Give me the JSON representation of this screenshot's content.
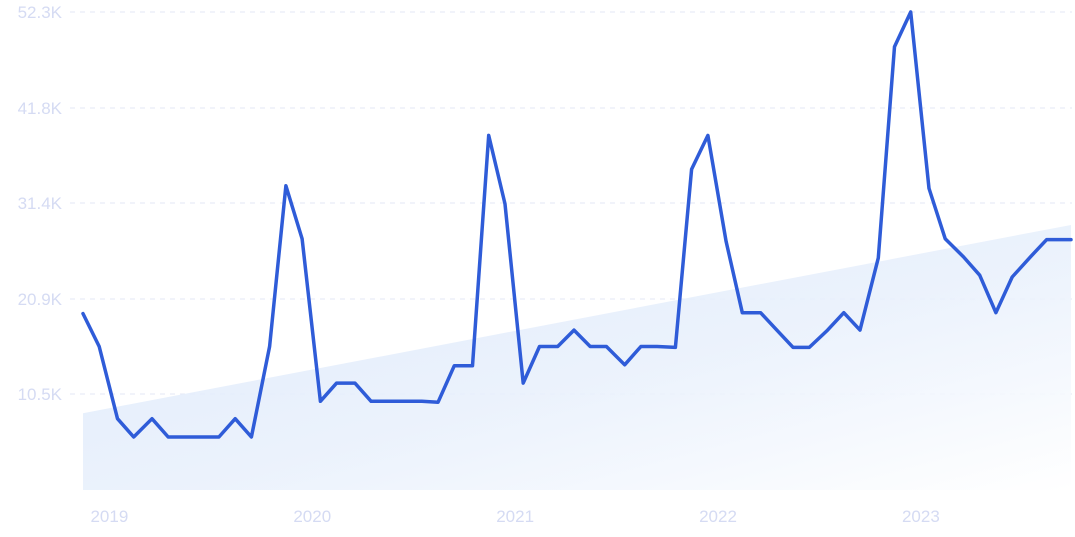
{
  "chart_data": {
    "type": "line",
    "title": "",
    "xlabel": "",
    "ylabel": "",
    "ylim": [
      0,
      52300
    ],
    "y_ticks": [
      {
        "value": 10500,
        "label": "10.5K"
      },
      {
        "value": 20900,
        "label": "20.9K"
      },
      {
        "value": 31400,
        "label": "31.4K"
      },
      {
        "value": 41800,
        "label": "41.8K"
      },
      {
        "value": 52300,
        "label": "52.3K"
      }
    ],
    "x_ticks": [
      {
        "value": 2019.0,
        "label": "2019"
      },
      {
        "value": 2020.0,
        "label": "2020"
      },
      {
        "value": 2021.0,
        "label": "2021"
      },
      {
        "value": 2022.0,
        "label": "2022"
      },
      {
        "value": 2023.0,
        "label": "2023"
      }
    ],
    "xlim": [
      2018.87,
      2023.74
    ],
    "grid": true,
    "series": [
      {
        "x": [
          2018.87,
          2018.95,
          2019.04,
          2019.12,
          2019.21,
          2019.29,
          2019.37,
          2019.45,
          2019.54,
          2019.62,
          2019.7,
          2019.79,
          2019.87,
          2019.95,
          2020.04,
          2020.12,
          2020.21,
          2020.29,
          2020.37,
          2020.45,
          2020.54,
          2020.62,
          2020.7,
          2020.79,
          2020.87,
          2020.95,
          2021.04,
          2021.12,
          2021.21,
          2021.29,
          2021.37,
          2021.45,
          2021.54,
          2021.62,
          2021.7,
          2021.79,
          2021.87,
          2021.95,
          2022.04,
          2022.12,
          2022.21,
          2022.29,
          2022.37,
          2022.45,
          2022.54,
          2022.62,
          2022.7,
          2022.79,
          2022.87,
          2022.95,
          2023.04,
          2023.12,
          2023.21,
          2023.29,
          2023.37,
          2023.45,
          2023.54,
          2023.62,
          2023.74
        ],
        "values": [
          19300,
          15700,
          7800,
          5800,
          7800,
          5800,
          5800,
          5800,
          5800,
          7800,
          5800,
          15700,
          33300,
          27500,
          9700,
          11700,
          11700,
          9700,
          9700,
          9700,
          9700,
          9600,
          13600,
          13600,
          38800,
          31300,
          11700,
          15700,
          15700,
          17500,
          15700,
          15700,
          13700,
          15700,
          15700,
          15600,
          35100,
          38800,
          27200,
          19400,
          19400,
          17500,
          15600,
          15600,
          17500,
          19400,
          17500,
          25400,
          48500,
          52300,
          33000,
          27500,
          25500,
          23500,
          19400,
          23300,
          25500,
          27400,
          27400
        ]
      }
    ],
    "trend_area": {
      "x": [
        2018.87,
        2023.74
      ],
      "values": [
        8400,
        29000
      ]
    }
  }
}
